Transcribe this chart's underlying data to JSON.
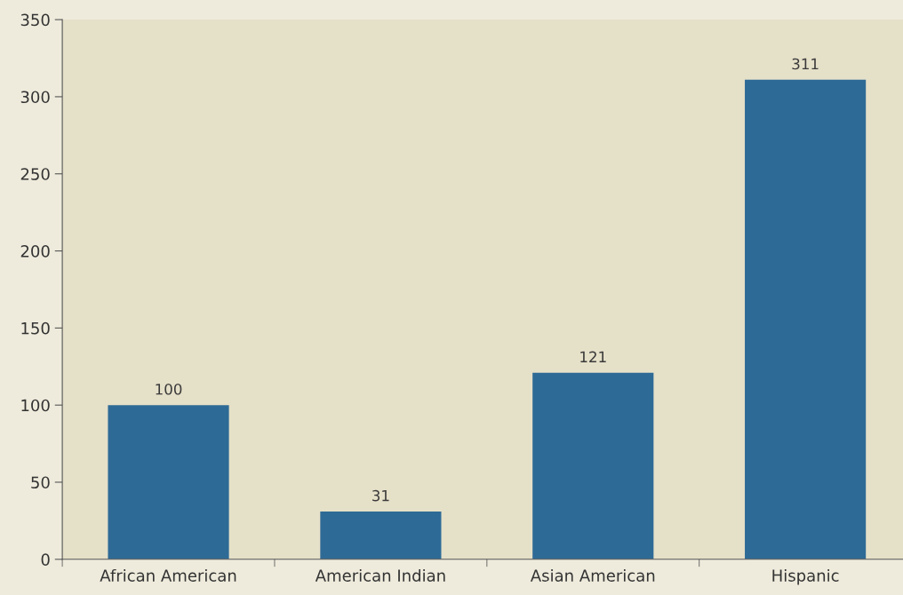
{
  "chart_data": {
    "type": "bar",
    "categories": [
      "African American",
      "American Indian",
      "Asian American",
      "Hispanic"
    ],
    "values": [
      100,
      31,
      121,
      311
    ],
    "color": "#2e6a96",
    "ylim": [
      0,
      350
    ],
    "yticks": [
      0,
      50,
      100,
      150,
      200,
      250,
      300,
      350
    ],
    "data_labels": true,
    "grid": false,
    "legend": false
  }
}
